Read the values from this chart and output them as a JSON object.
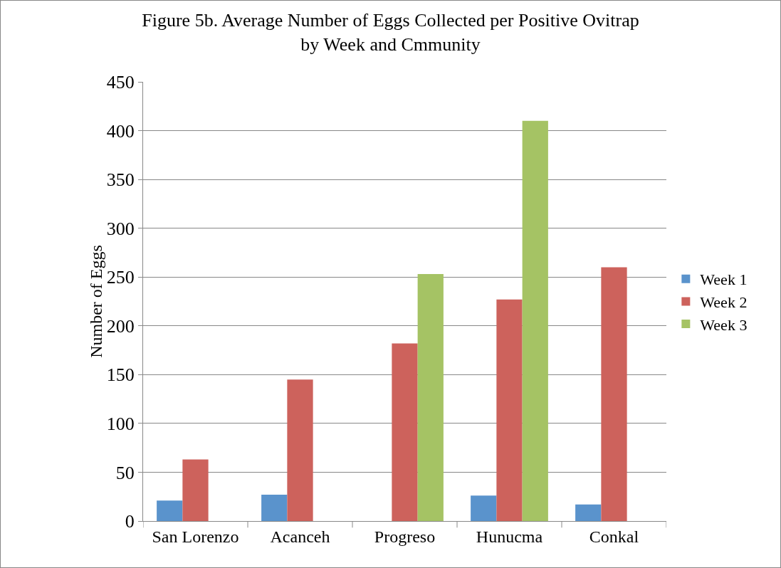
{
  "chart_data": {
    "type": "bar",
    "title": "Figure 5b. Average Number of Eggs Collected per Positive Ovitrap\nby Week and Cmmunity",
    "ylabel": "Number of Eggs",
    "categories": [
      "San Lorenzo",
      "Acanceh",
      "Progreso",
      "Hunucma",
      "Conkal"
    ],
    "series": [
      {
        "name": "Week 1",
        "color": "#5a93cc",
        "values": [
          21,
          27,
          null,
          26,
          17
        ]
      },
      {
        "name": "Week 2",
        "color": "#cd625c",
        "values": [
          63,
          145,
          182,
          227,
          260
        ]
      },
      {
        "name": "Week 3",
        "color": "#a5c364",
        "values": [
          null,
          null,
          253,
          410,
          null
        ]
      }
    ],
    "ylim": [
      0,
      450
    ],
    "yticks": [
      0,
      50,
      100,
      150,
      200,
      250,
      300,
      350,
      400,
      450
    ],
    "grid": "y",
    "legend": "right"
  }
}
